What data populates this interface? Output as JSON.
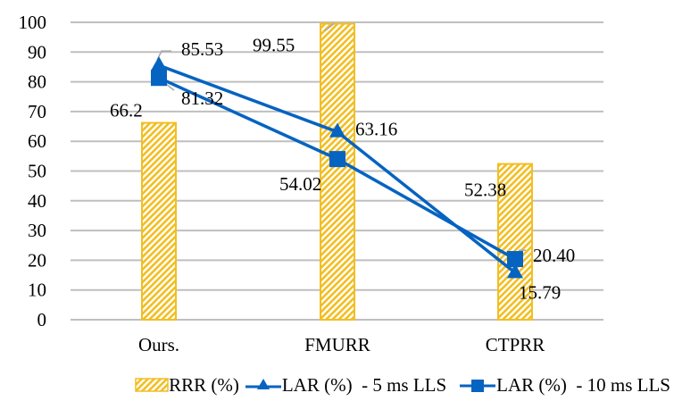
{
  "chart_data": {
    "type": "bar",
    "title": "",
    "xlabel": "",
    "ylabel": "",
    "ylim": [
      0,
      100
    ],
    "yticks": [
      0,
      10,
      20,
      30,
      40,
      50,
      60,
      70,
      80,
      90,
      100
    ],
    "grid": true,
    "legend_position": "bottom",
    "categories": [
      "Ours.",
      "FMURR",
      "CTPRR"
    ],
    "series": [
      {
        "name": "RRR (%)",
        "type": "bar",
        "values": [
          66.2,
          99.55,
          52.38
        ],
        "labels": [
          "66.2",
          "99.55",
          "52.38"
        ],
        "color": "#F2BE22",
        "pattern": "diagonal-hatch"
      },
      {
        "name": "LAR (%)  - 5 ms LLS",
        "type": "line",
        "marker": "triangle",
        "values": [
          85.53,
          63.16,
          15.79
        ],
        "labels": [
          "85.53",
          "63.16",
          "15.79"
        ],
        "color": "#0563C1"
      },
      {
        "name": "LAR (%)  - 10 ms LLS",
        "type": "line",
        "marker": "square",
        "values": [
          81.32,
          54.02,
          20.4
        ],
        "labels": [
          "81.32",
          "54.02",
          "20.40"
        ],
        "color": "#0563C1"
      }
    ]
  },
  "colors": {
    "gridline": "#BFBFBF",
    "leader_line": "#A6A6A6",
    "bar_border": "#F2BE22",
    "line": "#0563C1"
  }
}
